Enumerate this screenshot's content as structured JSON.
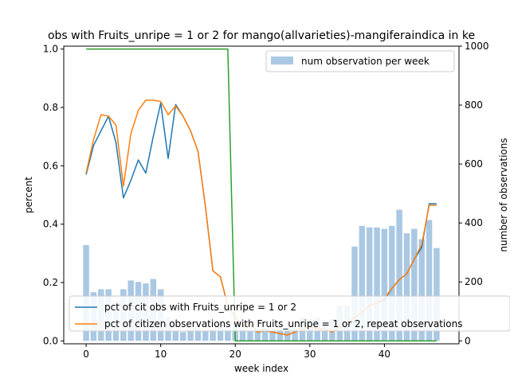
{
  "chart_data": {
    "type": "line",
    "title": "obs with Fruits_unripe = 1 or 2 for mango(allvarieties)-mangiferaindica in ke",
    "xlabel": "week index",
    "ylabel": "percent",
    "ylabel_right": "number of observations",
    "xlim": [
      -3,
      50
    ],
    "ylim": [
      -0.01,
      1.01
    ],
    "ylim_right": [
      -10,
      1000
    ],
    "xticks": [
      0,
      10,
      20,
      30,
      40
    ],
    "yticks": [
      0.0,
      0.2,
      0.4,
      0.6,
      0.8,
      1.0
    ],
    "yticks_right": [
      0,
      200,
      400,
      600,
      800,
      1000
    ],
    "x": [
      0,
      1,
      2,
      3,
      4,
      5,
      6,
      7,
      8,
      9,
      10,
      11,
      12,
      13,
      14,
      15,
      16,
      17,
      18,
      19,
      20,
      21,
      22,
      23,
      24,
      25,
      26,
      27,
      28,
      29,
      30,
      31,
      32,
      33,
      34,
      35,
      36,
      37,
      38,
      39,
      40,
      41,
      42,
      43,
      44,
      45,
      46,
      47
    ],
    "bars": {
      "name": "num observation per week",
      "color": "#aac8e3",
      "values": [
        325,
        165,
        175,
        175,
        125,
        175,
        205,
        200,
        195,
        210,
        175,
        80,
        35,
        30,
        35,
        45,
        35,
        40,
        60,
        40,
        60,
        40,
        35,
        35,
        45,
        35,
        40,
        45,
        40,
        80,
        75,
        80,
        70,
        75,
        120,
        120,
        320,
        390,
        385,
        385,
        380,
        390,
        445,
        365,
        380,
        345,
        410,
        315
      ]
    },
    "series": [
      {
        "name": "pct of cit obs with Fruits_unripe = 1 or 2",
        "color": "#1f77b4",
        "values": [
          0.57,
          0.67,
          0.72,
          0.77,
          0.68,
          0.49,
          0.55,
          0.62,
          0.575,
          0.7,
          0.815,
          0.625,
          0.81,
          0.77,
          0.72,
          0.65,
          0.46,
          0.24,
          0.22,
          0.12,
          0.08,
          0.05,
          0.06,
          0.03,
          0.035,
          0.03,
          0.025,
          0.02,
          0.03,
          0.04,
          0.05,
          0.04,
          0.04,
          0.03,
          0.05,
          0.06,
          0.08,
          0.1,
          0.12,
          0.13,
          0.14,
          0.18,
          0.21,
          0.23,
          0.28,
          0.32,
          0.47,
          0.47
        ]
      },
      {
        "name": "pct of citizen observations with Fruits_unripe = 1 or 2, repeat observations",
        "color": "#ff7f0e",
        "values": [
          0.575,
          0.69,
          0.775,
          0.77,
          0.74,
          0.53,
          0.71,
          0.79,
          0.825,
          0.825,
          0.82,
          0.775,
          0.805,
          0.77,
          0.72,
          0.65,
          0.46,
          0.24,
          0.22,
          0.12,
          0.08,
          0.05,
          0.06,
          0.03,
          0.035,
          0.03,
          0.025,
          0.02,
          0.03,
          0.04,
          0.05,
          0.04,
          0.04,
          0.03,
          0.05,
          0.06,
          0.08,
          0.1,
          0.12,
          0.13,
          0.145,
          0.18,
          0.21,
          0.23,
          0.28,
          0.33,
          0.465,
          0.465
        ]
      },
      {
        "name": "",
        "color": "#2ca02c",
        "values": [
          1,
          1,
          1,
          1,
          1,
          1,
          1,
          1,
          1,
          1,
          1,
          1,
          1,
          1,
          1,
          1,
          1,
          1,
          1,
          1,
          0,
          0,
          0,
          0,
          0,
          0,
          0,
          0,
          0,
          0,
          0,
          0,
          0,
          0,
          0,
          0,
          0,
          0,
          0,
          0,
          0,
          0,
          0,
          0,
          0,
          0,
          0,
          0
        ]
      }
    ],
    "legend_bars_placement": "top-right",
    "legend_lines_placement": "bottom-left",
    "grid": false
  }
}
